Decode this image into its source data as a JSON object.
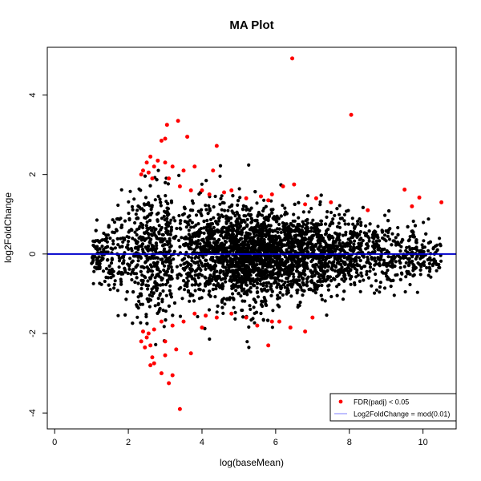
{
  "chart_data": {
    "type": "scatter",
    "title": "MA Plot",
    "xlabel": "log(baseMean)",
    "ylabel": "log2FoldChange",
    "xlim": [
      -0.2,
      10.9
    ],
    "ylim": [
      -4.4,
      5.2
    ],
    "xticks": [
      0,
      2,
      4,
      6,
      8,
      10
    ],
    "yticks": [
      -4,
      -2,
      0,
      2,
      4
    ],
    "grid": false,
    "legend_position": "bottom-right",
    "colors": {
      "background_points": "#000000",
      "significant": "#ff0000",
      "reference_line": "#0000cc",
      "legend_line": "#7f7fff"
    },
    "series": [
      {
        "name": "FDR(padj) < 0.05",
        "color": "#ff0000",
        "points": [
          [
            6.45,
            4.92
          ],
          [
            8.05,
            3.5
          ],
          [
            3.35,
            3.35
          ],
          [
            3.05,
            3.25
          ],
          [
            3.0,
            2.9
          ],
          [
            2.9,
            2.85
          ],
          [
            3.6,
            2.95
          ],
          [
            4.4,
            2.72
          ],
          [
            9.5,
            1.62
          ],
          [
            9.9,
            1.42
          ],
          [
            10.5,
            1.3
          ],
          [
            9.7,
            1.2
          ],
          [
            2.6,
            2.45
          ],
          [
            2.5,
            2.3
          ],
          [
            2.7,
            2.2
          ],
          [
            2.4,
            2.1
          ],
          [
            2.55,
            2.05
          ],
          [
            2.35,
            2.0
          ],
          [
            2.8,
            2.35
          ],
          [
            3.0,
            2.3
          ],
          [
            3.2,
            2.2
          ],
          [
            3.5,
            2.1
          ],
          [
            3.8,
            2.2
          ],
          [
            4.3,
            2.1
          ],
          [
            2.65,
            1.9
          ],
          [
            3.1,
            1.9
          ],
          [
            3.4,
            1.7
          ],
          [
            3.7,
            1.6
          ],
          [
            4.0,
            1.6
          ],
          [
            4.2,
            1.5
          ],
          [
            4.6,
            1.55
          ],
          [
            4.8,
            1.6
          ],
          [
            5.2,
            1.4
          ],
          [
            5.6,
            1.45
          ],
          [
            5.9,
            1.5
          ],
          [
            6.2,
            1.7
          ],
          [
            6.5,
            1.75
          ],
          [
            7.1,
            1.4
          ],
          [
            7.5,
            1.3
          ],
          [
            5.8,
            1.35
          ],
          [
            6.8,
            1.25
          ],
          [
            8.5,
            1.1
          ],
          [
            2.4,
            -1.95
          ],
          [
            2.5,
            -2.1
          ],
          [
            2.6,
            -2.3
          ],
          [
            2.45,
            -2.35
          ],
          [
            2.55,
            -2.0
          ],
          [
            2.7,
            -1.9
          ],
          [
            2.35,
            -2.2
          ],
          [
            2.65,
            -2.6
          ],
          [
            2.6,
            -2.8
          ],
          [
            2.7,
            -2.75
          ],
          [
            2.9,
            -3.0
          ],
          [
            3.1,
            -3.25
          ],
          [
            3.4,
            -3.9
          ],
          [
            3.2,
            -3.05
          ],
          [
            3.0,
            -2.55
          ],
          [
            3.3,
            -2.4
          ],
          [
            3.7,
            -2.5
          ],
          [
            3.0,
            -2.2
          ],
          [
            3.2,
            -1.8
          ],
          [
            3.5,
            -1.7
          ],
          [
            3.8,
            -1.5
          ],
          [
            4.1,
            -1.55
          ],
          [
            4.4,
            -1.6
          ],
          [
            4.8,
            -1.5
          ],
          [
            5.2,
            -1.6
          ],
          [
            5.5,
            -1.8
          ],
          [
            5.9,
            -1.7
          ],
          [
            6.1,
            -1.7
          ],
          [
            6.4,
            -1.85
          ],
          [
            6.8,
            -1.95
          ],
          [
            5.8,
            -2.3
          ],
          [
            7.0,
            -1.6
          ],
          [
            4.0,
            -1.85
          ],
          [
            2.9,
            -1.7
          ]
        ]
      }
    ],
    "legend": [
      "FDR(padj) < 0.05",
      "Log2FoldChange = mod(0.01)"
    ],
    "reference_line_y": 0
  }
}
